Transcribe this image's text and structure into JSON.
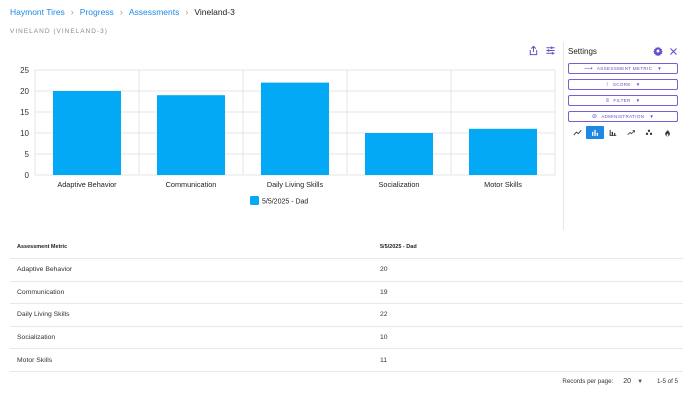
{
  "breadcrumb": {
    "items": [
      "Haymont Tires",
      "Progress",
      "Assessments"
    ],
    "current": "Vineland-3"
  },
  "subtitle": "VINELAND (VINELAND-3)",
  "settings": {
    "title": "Settings",
    "buttons": {
      "metric": "ASSESSMENT METRIC",
      "score": "SCORE",
      "filter": "FILTER",
      "administration": "ADMINISTRATION"
    },
    "chart_types": [
      "line-icon",
      "bar-icon",
      "bar-alt-icon",
      "trend-icon",
      "scatter-icon",
      "fire-icon"
    ],
    "active_chart_type": "bar-icon"
  },
  "colors": {
    "accent": "#1e88e5",
    "bar": "#03a9f4",
    "purple": "#7a5cd6"
  },
  "chart_data": {
    "type": "bar",
    "categories": [
      "Adaptive Behavior",
      "Communication",
      "Daily Living Skills",
      "Socialization",
      "Motor Skills"
    ],
    "series": [
      {
        "name": "5/5/2025 - Dad",
        "values": [
          20,
          19,
          22,
          10,
          11
        ]
      }
    ],
    "ylim": [
      0,
      25
    ],
    "yticks": [
      0,
      5,
      10,
      15,
      20,
      25
    ],
    "grid": true,
    "legend": "bottom"
  },
  "table": {
    "headers": [
      "Assessment Metric",
      "5/5/2025 - Dad"
    ],
    "rows": [
      [
        "Adaptive Behavior",
        "20"
      ],
      [
        "Communication",
        "19"
      ],
      [
        "Daily Living Skills",
        "22"
      ],
      [
        "Socialization",
        "10"
      ],
      [
        "Motor Skills",
        "11"
      ]
    ]
  },
  "pagination": {
    "label": "Records per page:",
    "per_page": "20",
    "range": "1-5 of 5"
  }
}
